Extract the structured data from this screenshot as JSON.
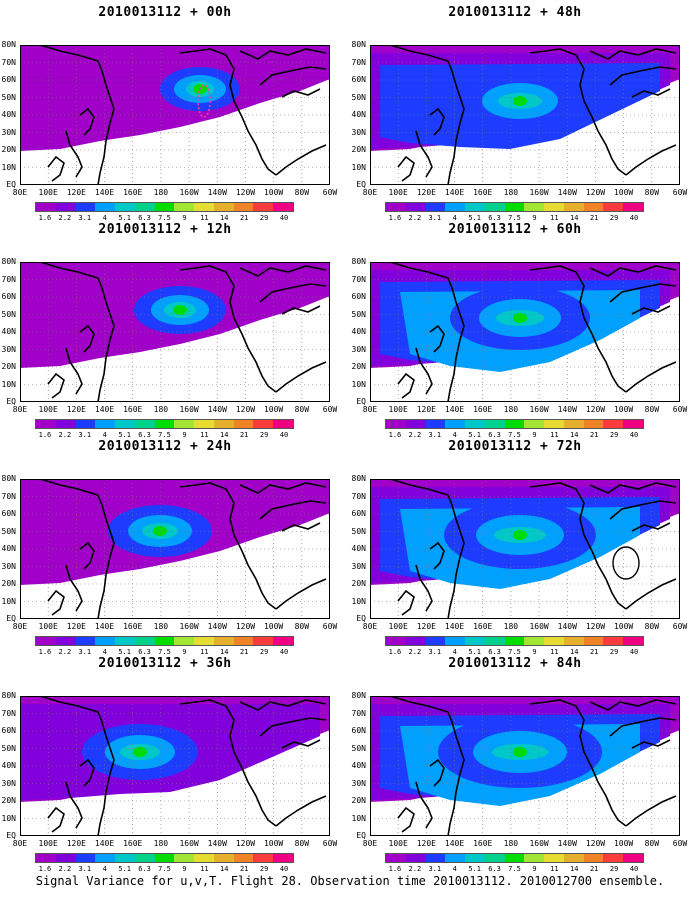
{
  "caption": "Signal Variance for u,v,T. Flight 28. Observation time 2010013112. 2010012700 ensemble.",
  "lat_labels": [
    "80N",
    "70N",
    "60N",
    "50N",
    "40N",
    "30N",
    "20N",
    "10N",
    "EQ"
  ],
  "lon_labels": [
    "80E",
    "100E",
    "120E",
    "140E",
    "160E",
    "180",
    "160W",
    "140W",
    "120W",
    "100W",
    "80W",
    "60W"
  ],
  "colorbar": {
    "labels": [
      "1.6",
      "2.2",
      "3.1",
      "4",
      "5.1",
      "6.3",
      "7.5",
      "9",
      "11",
      "14",
      "21",
      "29",
      "40"
    ],
    "colors": [
      "#a000c8",
      "#8200dc",
      "#1e3cff",
      "#00a0ff",
      "#00c8c8",
      "#00d28c",
      "#00dc00",
      "#a0e632",
      "#e6dc32",
      "#e6af2d",
      "#f08228",
      "#fa3c3c",
      "#f00082"
    ]
  },
  "panels": [
    {
      "title": "2010013112 + 00h"
    },
    {
      "title": "2010013112 + 12h"
    },
    {
      "title": "2010013112 + 24h"
    },
    {
      "title": "2010013112 + 36h"
    },
    {
      "title": "2010013112 + 48h"
    },
    {
      "title": "2010013112 + 60h"
    },
    {
      "title": "2010013112 + 72h"
    },
    {
      "title": "2010013112 + 84h"
    }
  ]
}
